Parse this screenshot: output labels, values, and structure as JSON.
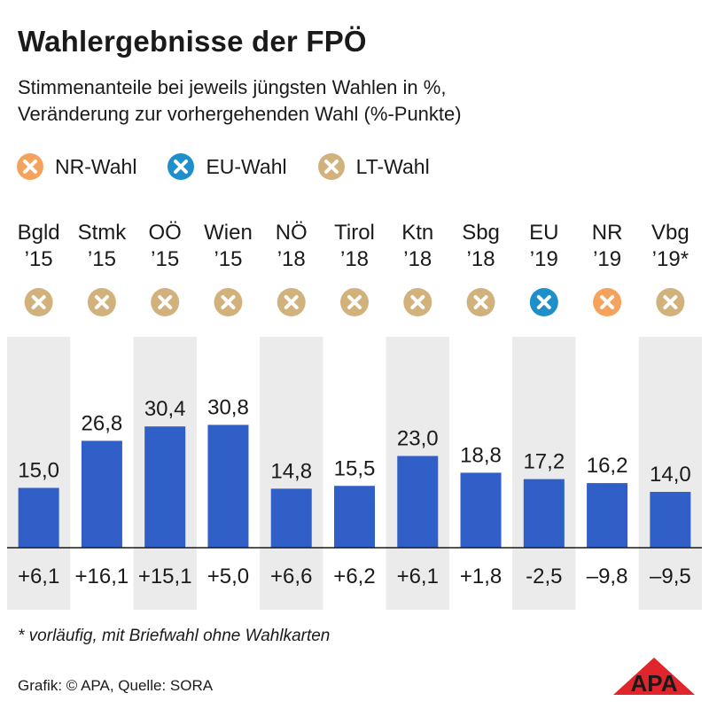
{
  "title": "Wahlergebnisse der FPÖ",
  "subtitle_line1": "Stimmenanteile bei jeweils jüngsten Wahlen in %,",
  "subtitle_line2": "Veränderung zur vorhergehenden Wahl (%-Punkte)",
  "legend": [
    {
      "label": "NR-Wahl",
      "color": "#f5a25d"
    },
    {
      "label": "EU-Wahl",
      "color": "#1e8fc9"
    },
    {
      "label": "LT-Wahl",
      "color": "#d2b27c"
    }
  ],
  "footnote": "* vorläufig, mit Briefwahl ohne Wahlkarten",
  "source": "Grafik: © APA, Quelle: SORA",
  "logo_text": "APA",
  "colors": {
    "bar": "#2f5fc7",
    "stripe": "#ebebeb",
    "nr": "#f5a25d",
    "eu": "#1e8fc9",
    "lt": "#d2b27c"
  },
  "chart_data": {
    "type": "bar",
    "categories": [
      "Bgld",
      "Stmk",
      "OÖ",
      "Wien",
      "NÖ",
      "Tirol",
      "Ktn",
      "Sbg",
      "EU",
      "NR",
      "Vbg"
    ],
    "years": [
      "’15",
      "’15",
      "’15",
      "’15",
      "’18",
      "’18",
      "’18",
      "’18",
      "’19",
      "’19",
      "’19*"
    ],
    "election_type": [
      "LT",
      "LT",
      "LT",
      "LT",
      "LT",
      "LT",
      "LT",
      "LT",
      "EU",
      "NR",
      "LT"
    ],
    "values": [
      15.0,
      26.8,
      30.4,
      30.8,
      14.8,
      15.5,
      23.0,
      18.8,
      17.2,
      16.2,
      14.0
    ],
    "value_labels": [
      "15,0",
      "26,8",
      "30,4",
      "30,8",
      "14,8",
      "15,5",
      "23,0",
      "18,8",
      "17,2",
      "16,2",
      "14,0"
    ],
    "changes": [
      6.1,
      16.1,
      15.1,
      5.0,
      6.6,
      6.2,
      6.1,
      1.8,
      -2.5,
      -9.8,
      -9.5
    ],
    "change_labels": [
      "+6,1",
      "+16,1",
      "+15,1",
      "+5,0",
      "+6,6",
      "+6,2",
      "+6,1",
      "+1,8",
      "-2,5",
      "–9,8",
      "–9,5"
    ],
    "ylim": [
      0,
      50
    ]
  }
}
